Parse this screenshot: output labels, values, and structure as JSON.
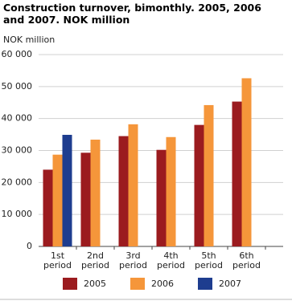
{
  "chart_data": {
    "type": "bar",
    "title": "Construction turnover, bimonthly. 2005, 2006 and 2007. NOK million",
    "y_label": "NOK million",
    "categories": [
      "1st period",
      "2nd period",
      "3rd period",
      "4th period",
      "5th period",
      "6th period"
    ],
    "series": [
      {
        "name": "2005",
        "color": "#9b1b1f",
        "values": [
          24000,
          29300,
          34500,
          30200,
          38000,
          45300
        ]
      },
      {
        "name": "2006",
        "color": "#f5963a",
        "values": [
          28700,
          33400,
          38200,
          34200,
          44200,
          52600
        ]
      },
      {
        "name": "2007",
        "color": "#1e3d8f",
        "values": [
          34900,
          null,
          null,
          null,
          null,
          null
        ]
      }
    ],
    "ylim": [
      0,
      60000
    ],
    "yticks": [
      0,
      {
        "value": 10000,
        "label": "10 000"
      },
      {
        "value": 20000,
        "label": "20 000"
      },
      {
        "value": 30000,
        "label": "30 000"
      },
      {
        "value": 40000,
        "label": "40 000"
      },
      {
        "value": 50000,
        "label": "50 000"
      },
      {
        "value": 60000,
        "label": "60 000"
      }
    ],
    "grid": true
  }
}
